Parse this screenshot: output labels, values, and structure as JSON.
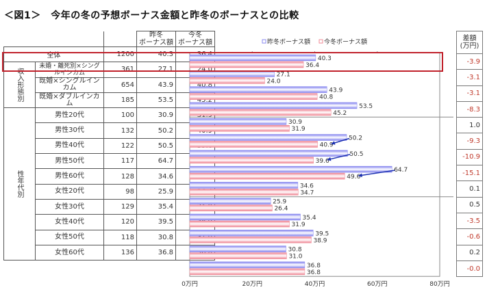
{
  "title": "＜図1＞　今年の冬の予想ボーナス金額と昨冬のボーナスとの比較",
  "table": {
    "headers": {
      "prev": "昨冬\nボーナス額",
      "curr": "今冬\nボーナス額",
      "diff": "差額\n(万円)"
    },
    "groups": {
      "income": "収入形態別",
      "sexage": "性年代別"
    }
  },
  "chart_data": {
    "type": "bar",
    "orientation": "horizontal",
    "categories": [
      "全体",
      "未婚・離死別×シングルインカム",
      "既婚×シングルインカム",
      "既婚×ダブルインカム",
      "男性20代",
      "男性30代",
      "男性40代",
      "男性50代",
      "男性60代",
      "女性20代",
      "女性30代",
      "女性40代",
      "女性50代",
      "女性60代"
    ],
    "n": [
      1200,
      361,
      654,
      185,
      100,
      132,
      122,
      117,
      128,
      98,
      129,
      120,
      118,
      136
    ],
    "series": [
      {
        "name": "昨冬ボーナス額",
        "color": "#8a8af0",
        "values": [
          40.3,
          27.1,
          43.9,
          53.5,
          30.9,
          50.2,
          50.5,
          64.7,
          34.6,
          25.9,
          35.4,
          39.5,
          30.8,
          36.8
        ]
      },
      {
        "name": "今冬ボーナス額",
        "color": "#f08a95",
        "values": [
          36.4,
          24.0,
          40.8,
          45.2,
          31.9,
          40.9,
          39.6,
          49.6,
          34.7,
          26.4,
          31.9,
          38.9,
          31.0,
          36.8
        ]
      }
    ],
    "diff": [
      "-3.9",
      "-3.1",
      "-3.1",
      "-8.3",
      "1.0",
      "-9.3",
      "-10.9",
      "-15.1",
      "0.1",
      "0.5",
      "-3.5",
      "-0.6",
      "0.2",
      "-0.0"
    ],
    "xlim": [
      0,
      80
    ],
    "xticks": [
      "0万円",
      "20万円",
      "40万円",
      "60万円",
      "80万円"
    ],
    "legend": "top",
    "highlight": "全体",
    "arrows": [
      "男性30代",
      "男性40代",
      "男性50代"
    ],
    "colors": {
      "highlight": "#c0202a",
      "arrow": "#1a2fb0",
      "negative": "#c0392b"
    }
  }
}
